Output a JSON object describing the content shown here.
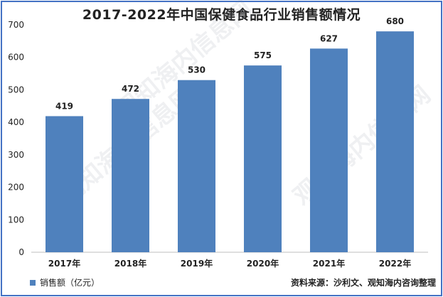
{
  "chart_data": {
    "type": "bar",
    "title": "2017-2022年中国保健食品行业销售额情况",
    "categories": [
      "2017年",
      "2018年",
      "2019年",
      "2020年",
      "2021年",
      "2022年"
    ],
    "series": [
      {
        "name": "销售额（亿元）",
        "values": [
          419,
          472,
          530,
          575,
          627,
          680
        ],
        "color": "#4f81bd"
      }
    ],
    "ylim": [
      0,
      700
    ],
    "yticks": [
      0,
      100,
      200,
      300,
      400,
      500,
      600,
      700
    ],
    "xlabel": "",
    "ylabel": "",
    "grid": false,
    "legend_placement": "bottom-left",
    "data_labels": true
  },
  "source_note": "资料来源：沙利文、观知海内咨询整理",
  "watermark": "观知海内信息网",
  "colors": {
    "frame": "#4472c4",
    "bar": "#4f81bd",
    "text": "#222222"
  }
}
